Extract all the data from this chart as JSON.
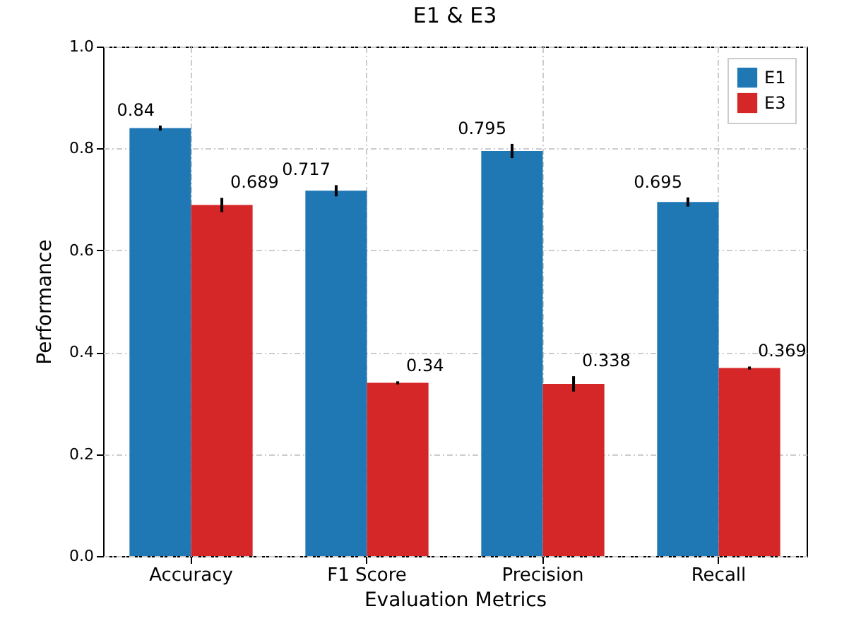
{
  "chart_data": {
    "type": "bar",
    "title": "E1 & E3",
    "xlabel": "Evaluation Metrics",
    "ylabel": "Performance",
    "categories": [
      "Accuracy",
      "F1 Score",
      "Precision",
      "Recall"
    ],
    "series": [
      {
        "name": "E1",
        "color": "#1f77b4",
        "values": [
          0.84,
          0.717,
          0.795,
          0.695
        ],
        "errors": [
          0.005,
          0.011,
          0.014,
          0.009
        ]
      },
      {
        "name": "E3",
        "color": "#d62728",
        "values": [
          0.689,
          0.34,
          0.338,
          0.369
        ],
        "errors": [
          0.014,
          0.003,
          0.015,
          0.003
        ]
      }
    ],
    "ylim": [
      0,
      1
    ],
    "yticks": [
      {
        "value": 0,
        "label": "0.0"
      },
      {
        "value": 0.2,
        "label": "0.2"
      },
      {
        "value": 0.4,
        "label": "0.4"
      },
      {
        "value": 0.6,
        "label": "0.6"
      },
      {
        "value": 0.8,
        "label": "0.8"
      },
      {
        "value": 1,
        "label": "1.0"
      }
    ],
    "grid": true,
    "legend": "top right",
    "data_labels": true
  }
}
